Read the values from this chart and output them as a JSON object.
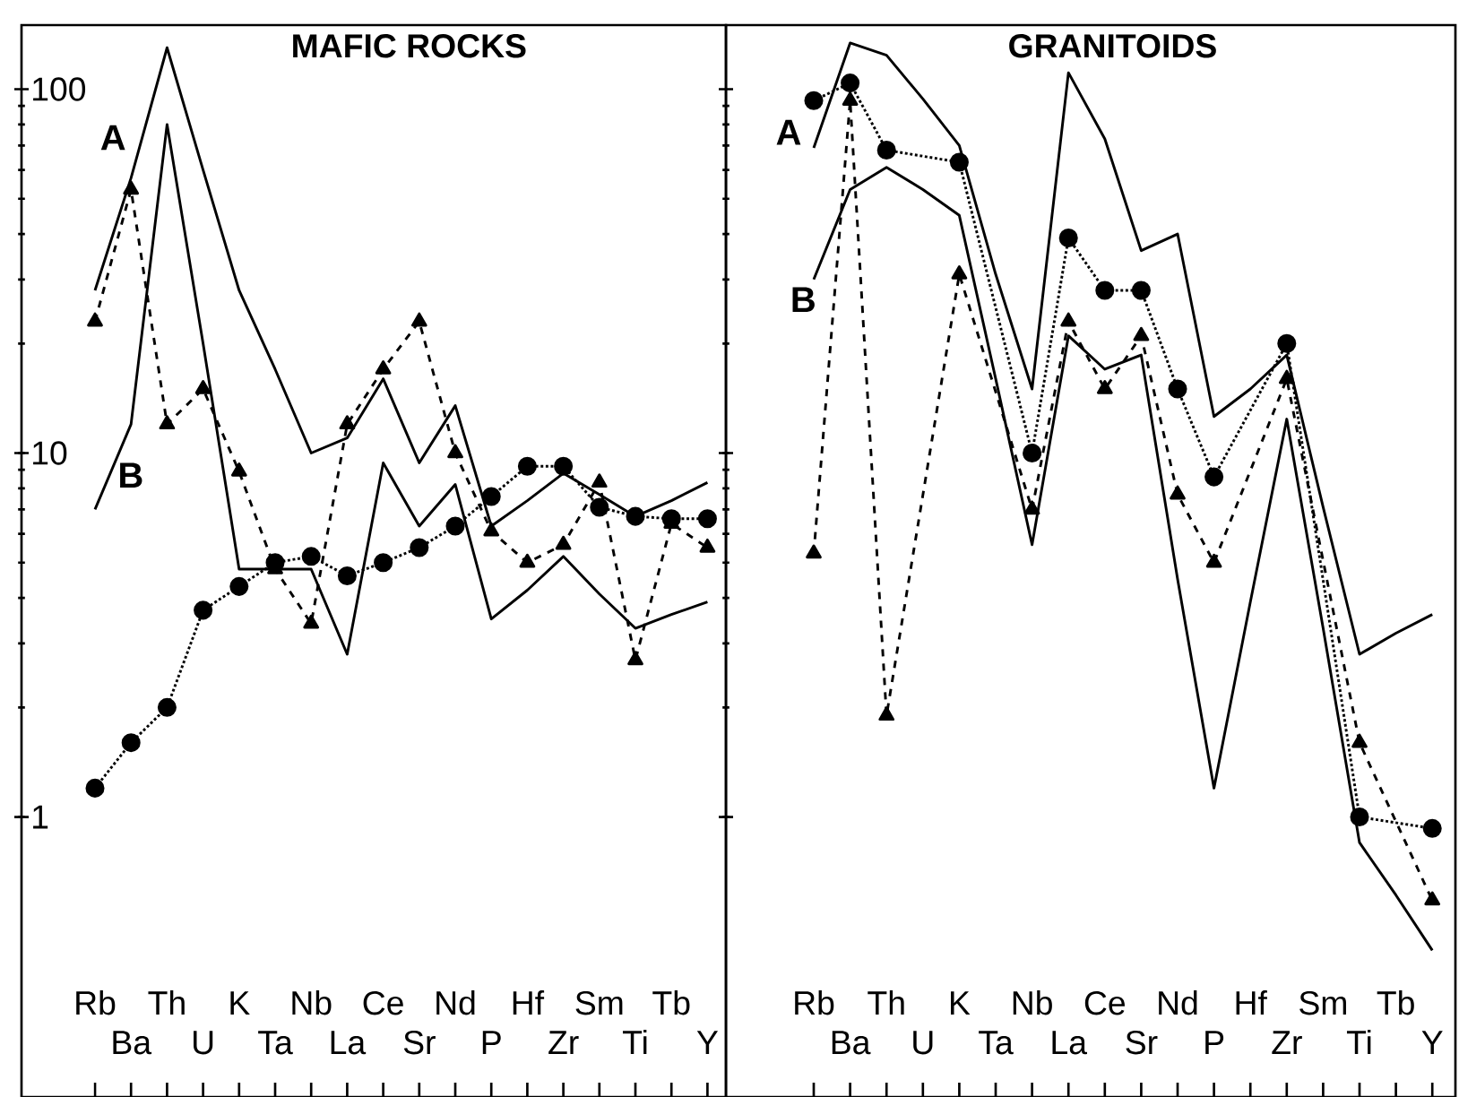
{
  "chart_data": [
    {
      "type": "line",
      "title": "MAFIC ROCKS",
      "log": true,
      "categories": [
        "Rb",
        "Ba",
        "Th",
        "U",
        "K",
        "Ta",
        "Nb",
        "La",
        "Ce",
        "Sr",
        "Nd",
        "P",
        "Hf",
        "Zr",
        "Sm",
        "Ti",
        "Tb",
        "Y"
      ],
      "ylim": [
        0.17,
        150
      ],
      "yticks": [
        1,
        10,
        100
      ],
      "series": [
        {
          "color": "#000000",
          "line_style": "solid",
          "marker": "none",
          "values": [
            28,
            57,
            130,
            60,
            28,
            17,
            10,
            11,
            16,
            9.4,
            13.5,
            6.3,
            7.4,
            8.8,
            7.7,
            6.7,
            7.4,
            8.3
          ]
        },
        {
          "color": "#000000",
          "line_style": "solid",
          "marker": "none",
          "values": [
            7.0,
            12,
            80,
            20,
            4.8,
            4.8,
            4.8,
            2.8,
            9.4,
            6.3,
            8.2,
            3.5,
            4.2,
            5.2,
            4.1,
            3.3,
            3.6,
            3.9
          ]
        },
        {
          "color": "#000000",
          "line_style": "dotted",
          "marker": "circle",
          "values": [
            1.2,
            1.6,
            2.0,
            3.7,
            4.3,
            5.0,
            5.2,
            4.6,
            5.0,
            5.5,
            6.3,
            7.6,
            9.2,
            9.2,
            7.1,
            6.7,
            6.6,
            6.6
          ]
        },
        {
          "color": "#000000",
          "line_style": "dashed",
          "marker": "triangle",
          "values": [
            23,
            53,
            12,
            15,
            8.9,
            4.8,
            3.4,
            12,
            17,
            23,
            10,
            6.1,
            5.0,
            5.6,
            8.3,
            2.7,
            6.4,
            5.5
          ]
        }
      ],
      "annotations": [
        "A",
        "B"
      ]
    },
    {
      "type": "line",
      "title": "GRANITOIDS",
      "log": true,
      "tick_labels": "x",
      "categories": [
        "Rb",
        "Ba",
        "Th",
        "U",
        "K",
        "Ta",
        "Nb",
        "La",
        "Ce",
        "Sr",
        "Nd",
        "P",
        "Hf",
        "Zr",
        "Sm",
        "Ti",
        "Tb",
        "Y"
      ],
      "ylim": [
        0.17,
        150
      ],
      "yticks": [
        1,
        10,
        100
      ],
      "series": [
        {
          "color": "#000000",
          "line_style": "solid",
          "marker": "none",
          "values": [
            69,
            134,
            124,
            94,
            70,
            31,
            15,
            111,
            73,
            36,
            40,
            12.6,
            15,
            18.6,
            7.1,
            2.8,
            3.2,
            3.6
          ]
        },
        {
          "color": "#000000",
          "line_style": "solid",
          "marker": "none",
          "values": [
            30,
            53,
            61,
            53,
            45,
            16,
            5.6,
            21,
            17,
            18.6,
            4.5,
            1.2,
            3.9,
            12.4,
            3.3,
            0.85,
            0.61,
            0.43
          ]
        },
        {
          "color": "#000000",
          "line_style": "dotted",
          "marker": "circle",
          "values": [
            93,
            104,
            68,
            null,
            63,
            null,
            10,
            39,
            28,
            28,
            15,
            8.6,
            null,
            20,
            null,
            1.0,
            null,
            0.93
          ]
        },
        {
          "color": "#000000",
          "line_style": "dashed",
          "marker": "triangle",
          "values": [
            5.3,
            93,
            1.9,
            null,
            31,
            null,
            7.0,
            23,
            15,
            21,
            7.7,
            5.0,
            null,
            16,
            null,
            1.6,
            null,
            0.59
          ]
        }
      ],
      "annotations": [
        "A",
        "B"
      ]
    }
  ]
}
